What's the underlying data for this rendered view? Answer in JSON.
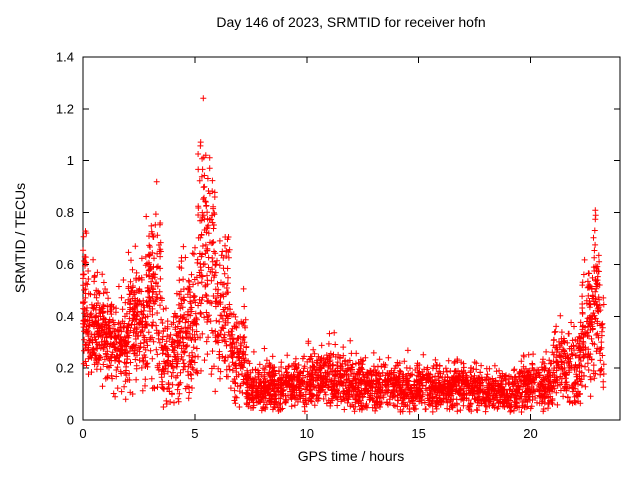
{
  "page": {
    "background": "#ffffff"
  },
  "chart_data": {
    "type": "scatter",
    "title": "Day 146 of 2023, SRMTID for receiver hofn",
    "xlabel": "GPS time / hours",
    "ylabel": "SRMTID / TECUs",
    "xlim": [
      0,
      24
    ],
    "ylim": [
      0,
      1.4
    ],
    "xticks": [
      0,
      5,
      10,
      15,
      20
    ],
    "xtick_labels": [
      "0",
      "5",
      "10",
      "15",
      "20"
    ],
    "yticks": [
      0,
      0.2,
      0.4,
      0.6,
      0.8,
      1.0,
      1.2,
      1.4
    ],
    "ytick_labels": [
      "0",
      "0.2",
      "0.4",
      "0.6",
      "0.8",
      "1",
      "1.2",
      "1.4"
    ],
    "grid": false,
    "legend": false,
    "marker": {
      "shape": "plus",
      "color": "#ff0000",
      "size": 6
    },
    "seed": 146,
    "scatter_profile": {
      "pattern": "high variable SRMTID 0-7h with spikes near 3.3h (~0.93) and 5.5h (~1.26), low plateau ~0.1-0.2 TECUs from 7-21h, rising again after 21h to ~0.86 near 23h",
      "segments": [
        {
          "t0": 0.0,
          "t1": 0.15,
          "n": 50,
          "mean": 0.45,
          "sd": 0.15,
          "min": 0.18,
          "max": 0.75
        },
        {
          "t0": 0.15,
          "t1": 1.0,
          "n": 160,
          "mean": 0.35,
          "sd": 0.1,
          "min": 0.1,
          "max": 0.62
        },
        {
          "t0": 1.0,
          "t1": 2.0,
          "n": 180,
          "mean": 0.3,
          "sd": 0.1,
          "min": 0.08,
          "max": 0.58
        },
        {
          "t0": 2.0,
          "t1": 2.8,
          "n": 150,
          "mean": 0.38,
          "sd": 0.12,
          "min": 0.1,
          "max": 0.72
        },
        {
          "t0": 2.8,
          "t1": 3.5,
          "n": 130,
          "mean": 0.5,
          "sd": 0.18,
          "min": 0.12,
          "max": 0.93
        },
        {
          "t0": 3.5,
          "t1": 4.3,
          "n": 130,
          "mean": 0.25,
          "sd": 0.1,
          "min": 0.04,
          "max": 0.65
        },
        {
          "t0": 4.3,
          "t1": 5.1,
          "n": 140,
          "mean": 0.35,
          "sd": 0.15,
          "min": 0.05,
          "max": 0.85
        },
        {
          "t0": 5.1,
          "t1": 5.5,
          "n": 70,
          "mean": 0.65,
          "sd": 0.28,
          "min": 0.15,
          "max": 1.26
        },
        {
          "t0": 5.5,
          "t1": 5.9,
          "n": 70,
          "mean": 0.6,
          "sd": 0.22,
          "min": 0.15,
          "max": 1.1
        },
        {
          "t0": 5.9,
          "t1": 6.6,
          "n": 110,
          "mean": 0.42,
          "sd": 0.14,
          "min": 0.1,
          "max": 0.75
        },
        {
          "t0": 6.6,
          "t1": 7.3,
          "n": 110,
          "mean": 0.25,
          "sd": 0.1,
          "min": 0.05,
          "max": 0.55
        },
        {
          "t0": 7.3,
          "t1": 8.2,
          "n": 140,
          "mean": 0.12,
          "sd": 0.05,
          "min": 0.03,
          "max": 0.3
        },
        {
          "t0": 8.2,
          "t1": 10.0,
          "n": 260,
          "mean": 0.13,
          "sd": 0.05,
          "min": 0.03,
          "max": 0.32
        },
        {
          "t0": 10.0,
          "t1": 12.0,
          "n": 300,
          "mean": 0.16,
          "sd": 0.06,
          "min": 0.04,
          "max": 0.36
        },
        {
          "t0": 12.0,
          "t1": 14.0,
          "n": 300,
          "mean": 0.13,
          "sd": 0.05,
          "min": 0.03,
          "max": 0.32
        },
        {
          "t0": 14.0,
          "t1": 16.0,
          "n": 300,
          "mean": 0.12,
          "sd": 0.05,
          "min": 0.03,
          "max": 0.3
        },
        {
          "t0": 16.0,
          "t1": 18.0,
          "n": 300,
          "mean": 0.12,
          "sd": 0.045,
          "min": 0.03,
          "max": 0.28
        },
        {
          "t0": 18.0,
          "t1": 19.5,
          "n": 220,
          "mean": 0.11,
          "sd": 0.04,
          "min": 0.03,
          "max": 0.26
        },
        {
          "t0": 19.5,
          "t1": 21.0,
          "n": 220,
          "mean": 0.13,
          "sd": 0.05,
          "min": 0.03,
          "max": 0.3
        },
        {
          "t0": 21.0,
          "t1": 22.3,
          "n": 200,
          "mean": 0.2,
          "sd": 0.08,
          "min": 0.05,
          "max": 0.45
        },
        {
          "t0": 22.3,
          "t1": 22.8,
          "n": 90,
          "mean": 0.35,
          "sd": 0.12,
          "min": 0.08,
          "max": 0.62
        },
        {
          "t0": 22.8,
          "t1": 23.1,
          "n": 60,
          "mean": 0.5,
          "sd": 0.18,
          "min": 0.12,
          "max": 0.86
        },
        {
          "t0": 23.1,
          "t1": 23.3,
          "n": 25,
          "mean": 0.3,
          "sd": 0.1,
          "min": 0.08,
          "max": 0.55
        }
      ]
    }
  }
}
